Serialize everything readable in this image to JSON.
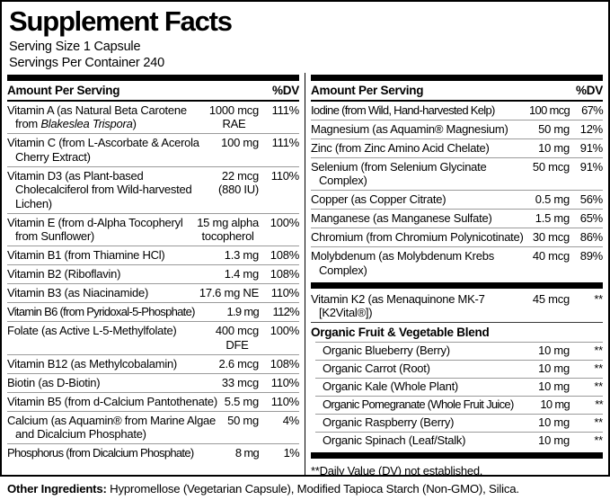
{
  "title": "Supplement Facts",
  "serving": {
    "size": "Serving Size 1 Capsule",
    "per_container": "Servings Per Container 240"
  },
  "table_header": {
    "amount": "Amount Per Serving",
    "dv": "%DV"
  },
  "left_column": {
    "rows": [
      {
        "name_parts": [
          {
            "text": "Vitamin A (as Natural Beta Carotene from "
          },
          {
            "text": "Blakeslea Trispora",
            "italic": true
          },
          {
            "text": ")"
          }
        ],
        "amount": "1000 mcg",
        "amount2": "RAE",
        "dv": "111%"
      },
      {
        "name": "Vitamin C (from L-Ascorbate & Acerola Cherry Extract)",
        "amount": "100 mg",
        "dv": "111%"
      },
      {
        "name": "Vitamin D3 (as Plant-based Cholecalciferol from Wild-harvested Lichen)",
        "amount": "22 mcg",
        "amount2": "(880 IU)",
        "dv": "110%"
      },
      {
        "name": "Vitamin E (from d-Alpha Tocopheryl from Sunflower)",
        "amount": "15 mg alpha",
        "amount2": "tocopherol",
        "dv": "100%"
      },
      {
        "name": "Vitamin B1 (from Thiamine HCl)",
        "amount": "1.3 mg",
        "dv": "108%"
      },
      {
        "name": "Vitamin B2 (Riboflavin)",
        "amount": "1.4 mg",
        "dv": "108%"
      },
      {
        "name": "Vitamin B3 (as Niacinamide)",
        "amount": "17.6 mg NE",
        "dv": "110%"
      },
      {
        "name": "Vitamin B6 (from Pyridoxal-5-Phosphate)",
        "amount": "1.9 mg",
        "dv": "112%",
        "tight": true
      },
      {
        "name": "Folate (as Active L-5-Methylfolate)",
        "amount": "400 mcg",
        "amount2": "DFE",
        "dv": "100%"
      },
      {
        "name": "Vitamin B12 (as Methylcobalamin)",
        "amount": "2.6 mcg",
        "dv": "108%"
      },
      {
        "name": "Biotin (as D-Biotin)",
        "amount": "33 mcg",
        "dv": "110%"
      },
      {
        "name": "Vitamin B5 (from d-Calcium Pantothenate)",
        "amount": "5.5 mg",
        "dv": "110%"
      },
      {
        "name": "Calcium (as Aquamin® from Marine Algae and Dicalcium Phosphate)",
        "amount": "50 mg",
        "dv": "4%"
      },
      {
        "name": "Phosphorus (from Dicalcium Phosphate)",
        "amount": "8 mg",
        "dv": "1%",
        "tight": true
      }
    ]
  },
  "right_column": {
    "mineral_rows": [
      {
        "name": "Iodine (from Wild, Hand-harvested Kelp)",
        "amount": "100 mcg",
        "dv": "67%",
        "tight": true
      },
      {
        "name": "Magnesium (as Aquamin® Magnesium)",
        "amount": "50 mg",
        "dv": "12%"
      },
      {
        "name": "Zinc (from Zinc Amino Acid Chelate)",
        "amount": "10 mg",
        "dv": "91%"
      },
      {
        "name": "Selenium (from Selenium Glycinate Complex)",
        "amount": "50 mcg",
        "dv": "91%"
      },
      {
        "name": "Copper (as Copper Citrate)",
        "amount": "0.5 mg",
        "dv": "56%"
      },
      {
        "name": "Manganese (as Manganese Sulfate)",
        "amount": "1.5 mg",
        "dv": "65%"
      },
      {
        "name": "Chromium (from Chromium Polynicotinate)",
        "amount": "30 mcg",
        "dv": "86%"
      },
      {
        "name": "Molybdenum (as Molybdenum Krebs Complex)",
        "amount": "40 mcg",
        "dv": "89%"
      }
    ],
    "k2_rows": [
      {
        "name": "Vitamin K2 (as Menaquinone MK-7 [K2Vital®])",
        "amount": "45 mcg",
        "dv": "**"
      }
    ],
    "blend": {
      "title": "Organic Fruit & Vegetable Blend",
      "rows": [
        {
          "name": "Organic Blueberry (Berry)",
          "amount": "10 mg",
          "dv": "**"
        },
        {
          "name": "Organic Carrot (Root)",
          "amount": "10 mg",
          "dv": "**"
        },
        {
          "name": "Organic Kale (Whole Plant)",
          "amount": "10 mg",
          "dv": "**"
        },
        {
          "name": "Organic Pomegranate (Whole Fruit Juice)",
          "amount": "10 mg",
          "dv": "**",
          "tight": true
        },
        {
          "name": "Organic Raspberry (Berry)",
          "amount": "10 mg",
          "dv": "**"
        },
        {
          "name": "Organic Spinach (Leaf/Stalk)",
          "amount": "10 mg",
          "dv": "**"
        }
      ]
    },
    "footnote": "**Daily Value (DV) not established."
  },
  "footer": {
    "label": "Other Ingredients:",
    "text": " Hypromellose (Vegetarian Capsule), Modified Tapioca Starch (Non-GMO), Silica."
  },
  "colors": {
    "ink": "#000000",
    "separator": "#9a9a9a",
    "background": "#ffffff"
  }
}
